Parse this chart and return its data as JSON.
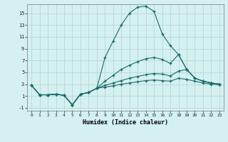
{
  "xlabel": "Humidex (Indice chaleur)",
  "background_color": "#d4f0f0",
  "grid_color": "#b8d8d8",
  "line_color": "#1a6b6b",
  "xlim": [
    -0.5,
    23.5
  ],
  "ylim": [
    -1.5,
    16.5
  ],
  "xticks": [
    0,
    1,
    2,
    3,
    4,
    5,
    6,
    7,
    8,
    9,
    10,
    11,
    12,
    13,
    14,
    15,
    16,
    17,
    18,
    19,
    20,
    21,
    22,
    23
  ],
  "yticks": [
    -1,
    1,
    3,
    5,
    7,
    9,
    11,
    13,
    15
  ],
  "x": [
    0,
    1,
    2,
    3,
    4,
    5,
    6,
    7,
    8,
    9,
    10,
    11,
    12,
    13,
    14,
    15,
    16,
    17,
    18,
    19,
    20,
    21,
    22,
    23
  ],
  "line1": [
    2.8,
    1.2,
    1.2,
    1.3,
    1.1,
    -0.5,
    1.3,
    1.6,
    2.3,
    7.5,
    10.3,
    13.0,
    15.0,
    16.0,
    16.2,
    15.3,
    11.5,
    9.5,
    8.0,
    5.5,
    4.0,
    3.5,
    3.2,
    3.0
  ],
  "line2": [
    2.8,
    1.2,
    1.2,
    1.3,
    1.1,
    -0.5,
    1.3,
    1.6,
    2.3,
    3.5,
    4.5,
    5.5,
    6.2,
    6.8,
    7.3,
    7.5,
    7.2,
    6.5,
    8.0,
    5.5,
    4.0,
    3.5,
    3.2,
    3.0
  ],
  "line3": [
    2.8,
    1.2,
    1.2,
    1.3,
    1.1,
    -0.5,
    1.3,
    1.6,
    2.3,
    2.8,
    3.2,
    3.6,
    4.0,
    4.3,
    4.6,
    4.8,
    4.7,
    4.4,
    5.2,
    5.5,
    4.0,
    3.5,
    3.2,
    3.0
  ],
  "line4": [
    2.8,
    1.2,
    1.2,
    1.3,
    1.1,
    -0.5,
    1.3,
    1.6,
    2.3,
    2.5,
    2.7,
    3.0,
    3.2,
    3.4,
    3.6,
    3.7,
    3.6,
    3.5,
    4.0,
    3.8,
    3.5,
    3.2,
    3.0,
    2.9
  ]
}
